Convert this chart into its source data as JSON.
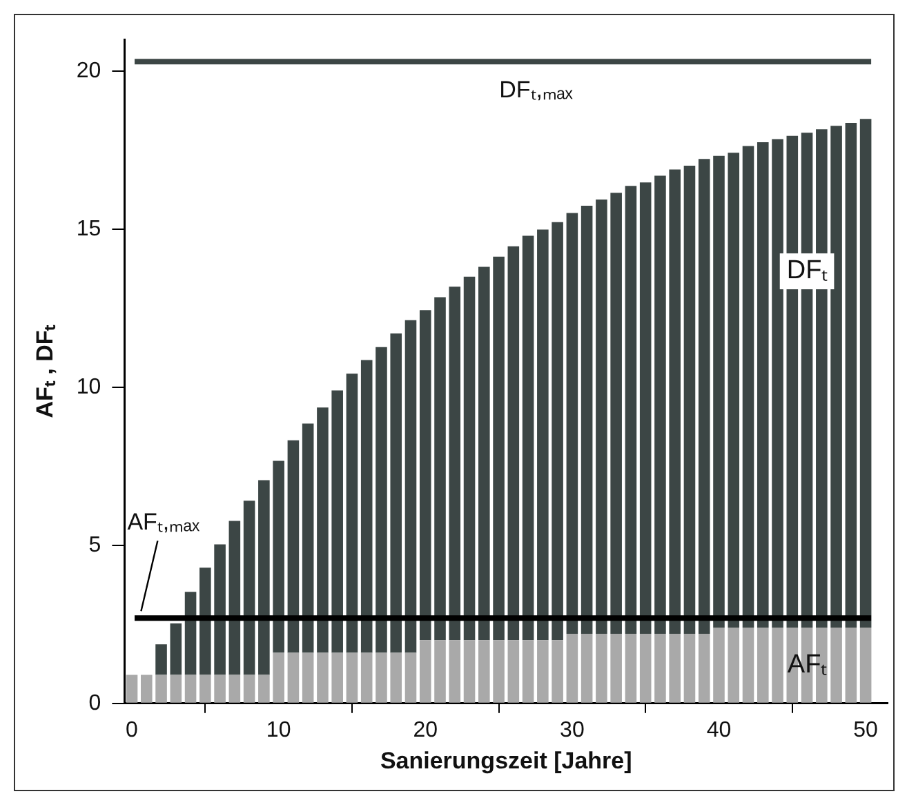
{
  "chart_data": {
    "type": "bar",
    "stacked": true,
    "xlabel": "Sanierungszeit [Jahre]",
    "ylabel": "AFₜ , DFₜ",
    "x": [
      0,
      1,
      2,
      3,
      4,
      5,
      6,
      7,
      8,
      9,
      10,
      11,
      12,
      13,
      14,
      15,
      16,
      17,
      18,
      19,
      20,
      21,
      22,
      23,
      24,
      25,
      26,
      27,
      28,
      29,
      30,
      31,
      32,
      33,
      34,
      35,
      36,
      37,
      38,
      39,
      40,
      41,
      42,
      43,
      44,
      45,
      46,
      47,
      48,
      49,
      50
    ],
    "series": [
      {
        "name": "AFₜ",
        "color": "#a9a9a9",
        "values": [
          0.9,
          0.9,
          0.9,
          0.9,
          0.9,
          0.9,
          0.9,
          0.9,
          0.9,
          0.9,
          1.6,
          1.6,
          1.6,
          1.6,
          1.6,
          1.6,
          1.6,
          1.6,
          1.6,
          1.6,
          2.0,
          2.0,
          2.0,
          2.0,
          2.0,
          2.0,
          2.0,
          2.0,
          2.0,
          2.0,
          2.2,
          2.2,
          2.2,
          2.2,
          2.2,
          2.2,
          2.2,
          2.2,
          2.2,
          2.2,
          2.4,
          2.4,
          2.4,
          2.4,
          2.4,
          2.4,
          2.4,
          2.4,
          2.4,
          2.4,
          2.4
        ]
      },
      {
        "name": "DFₜ",
        "color": "#3c4645",
        "values": [
          0,
          0,
          0.97,
          1.63,
          2.63,
          3.39,
          4.13,
          4.87,
          5.51,
          6.16,
          6.07,
          6.72,
          7.25,
          7.76,
          8.3,
          8.83,
          9.26,
          9.67,
          10.1,
          10.52,
          10.44,
          10.85,
          11.18,
          11.5,
          11.81,
          12.13,
          12.46,
          12.79,
          12.99,
          13.22,
          13.31,
          13.54,
          13.74,
          13.95,
          14.17,
          14.28,
          14.49,
          14.69,
          14.81,
          15.02,
          14.92,
          15.02,
          15.23,
          15.35,
          15.45,
          15.55,
          15.65,
          15.76,
          15.87,
          15.96,
          16.09
        ]
      }
    ],
    "ref_lines": [
      {
        "axis": "y",
        "value": 20.3,
        "label": "DFₜ,ₘₐₓ",
        "color": "#3c4645"
      },
      {
        "axis": "y",
        "value": 2.7,
        "label": "AFₜ,ₘₐₓ",
        "color": "#000000"
      }
    ],
    "xlim": [
      -0.5,
      51.5
    ],
    "xticks": [
      0,
      10,
      20,
      30,
      40,
      50
    ],
    "ylim": [
      0,
      21
    ],
    "yticks": [
      0,
      5,
      10,
      15,
      20
    ],
    "grid": false,
    "legend": false
  }
}
